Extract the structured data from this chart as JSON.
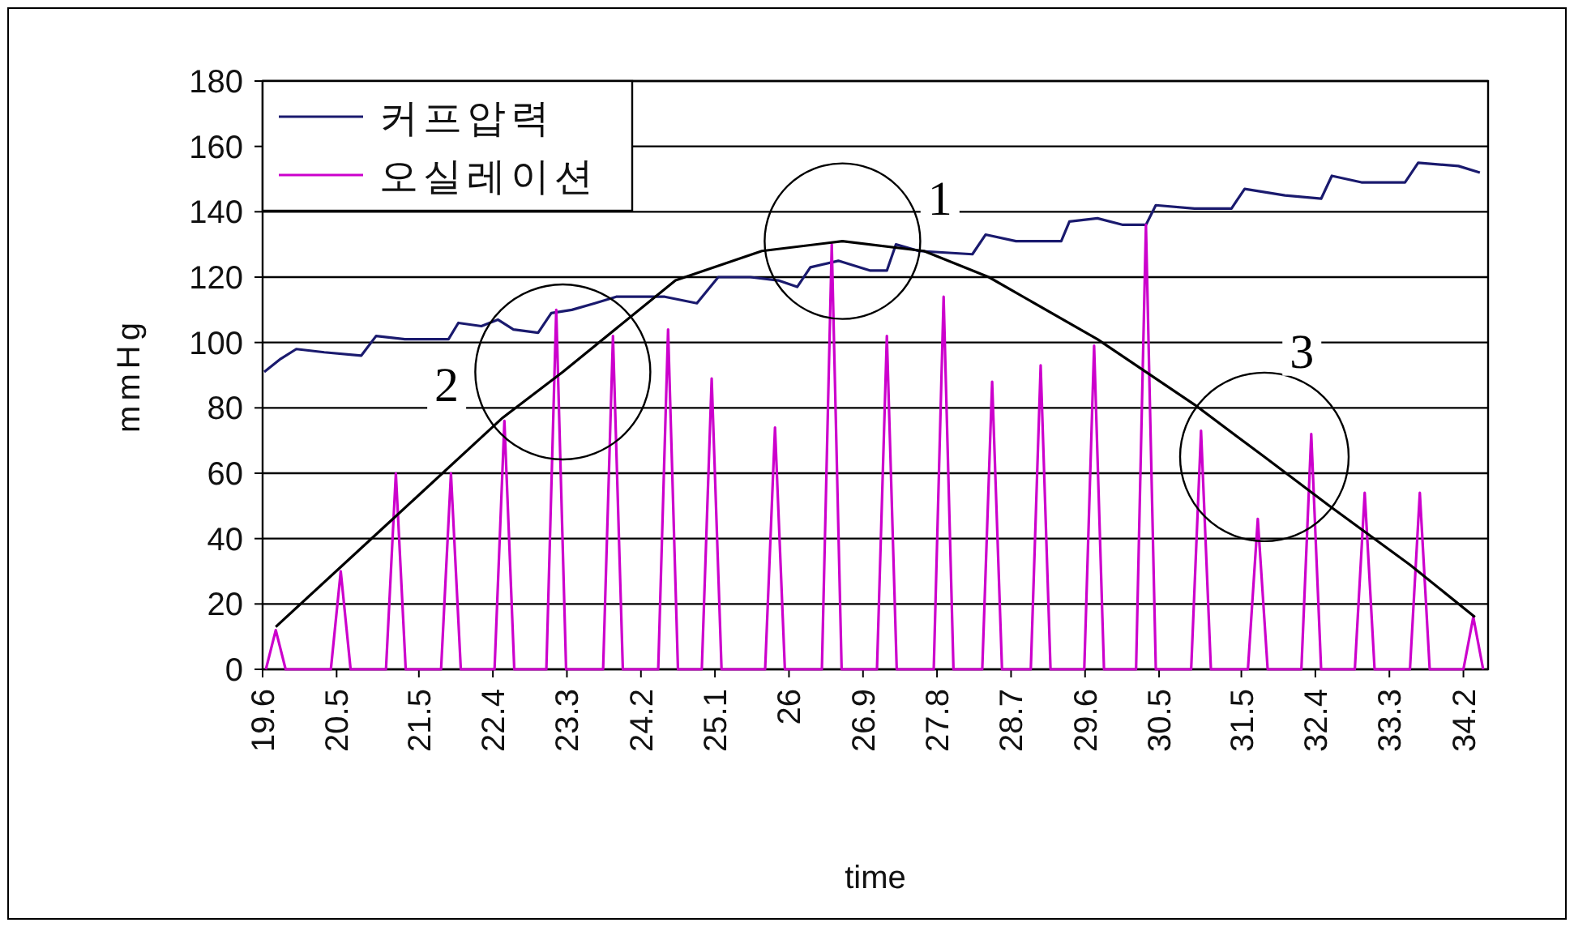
{
  "chart_data": {
    "type": "line",
    "xlabel": "time",
    "ylabel": "mmHg",
    "xlim": [
      19.6,
      34.5
    ],
    "ylim": [
      0,
      180
    ],
    "xticks": [
      19.6,
      20.5,
      21.5,
      22.4,
      23.3,
      24.2,
      25.1,
      26,
      26.9,
      27.8,
      28.7,
      29.6,
      30.5,
      31.5,
      32.4,
      33.3,
      34.2
    ],
    "yticks": [
      0,
      20,
      40,
      60,
      80,
      100,
      120,
      140,
      160,
      180
    ],
    "grid": "y",
    "legend": "top left",
    "series": [
      {
        "name": "커프압력",
        "color": "#1a1a6e",
        "x": [
          19.62,
          19.82,
          20.01,
          20.35,
          20.8,
          20.98,
          21.33,
          21.86,
          21.98,
          22.26,
          22.46,
          22.65,
          22.95,
          23.11,
          23.36,
          23.64,
          23.9,
          24.29,
          24.49,
          24.88,
          25.14,
          25.53,
          25.87,
          26.1,
          26.26,
          26.6,
          26.99,
          27.19,
          27.3,
          27.58,
          28.23,
          28.39,
          28.76,
          29.31,
          29.41,
          29.75,
          30.06,
          30.34,
          30.46,
          30.93,
          31.38,
          31.54,
          32.03,
          32.47,
          32.6,
          32.96,
          33.49,
          33.65,
          34.14,
          34.4
        ],
        "values": [
          91,
          95,
          98,
          97,
          96,
          102,
          101,
          101,
          106,
          105,
          107,
          104,
          103,
          109,
          110,
          112,
          114,
          114,
          114,
          112,
          120,
          120,
          119,
          117,
          123,
          125,
          122,
          122,
          130,
          128,
          127,
          133,
          131,
          131,
          137,
          138,
          136,
          136,
          142,
          141,
          141,
          147,
          145,
          144,
          151,
          149,
          149,
          155,
          154,
          152
        ]
      },
      {
        "name": "오실레이션",
        "color": "#cc00cc",
        "x": [
          19.64,
          19.76,
          19.88,
          20.43,
          20.55,
          20.67,
          21.1,
          21.22,
          21.34,
          21.77,
          21.89,
          22.01,
          22.42,
          22.54,
          22.66,
          23.05,
          23.17,
          23.29,
          23.74,
          23.86,
          23.98,
          24.41,
          24.53,
          24.65,
          24.94,
          25.06,
          25.18,
          25.71,
          25.83,
          25.95,
          26.4,
          26.52,
          26.64,
          27.07,
          27.19,
          27.31,
          27.76,
          27.88,
          28.0,
          28.35,
          28.47,
          28.59,
          28.94,
          29.06,
          29.18,
          29.59,
          29.71,
          29.83,
          30.22,
          30.34,
          30.46,
          30.89,
          31.01,
          31.13,
          31.58,
          31.7,
          31.82,
          32.23,
          32.35,
          32.47,
          32.88,
          33.0,
          33.12,
          33.55,
          33.67,
          33.79,
          34.2,
          34.32,
          34.44
        ],
        "values": [
          0,
          12,
          0,
          0,
          30,
          0,
          0,
          60,
          0,
          0,
          60,
          0,
          0,
          76,
          0,
          0,
          110,
          0,
          0,
          102,
          0,
          0,
          104,
          0,
          0,
          89,
          0,
          0,
          74,
          0,
          0,
          130,
          0,
          0,
          102,
          0,
          0,
          114,
          0,
          0,
          88,
          0,
          0,
          93,
          0,
          0,
          99,
          0,
          0,
          136,
          0,
          0,
          73,
          0,
          0,
          46,
          0,
          0,
          72,
          0,
          0,
          54,
          0,
          0,
          54,
          0,
          0,
          16,
          0
        ]
      },
      {
        "color": "#000000",
        "x": [
          19.76,
          21.14,
          22.52,
          23.25,
          24.62,
          25.67,
          26.65,
          27.64,
          28.43,
          29.75,
          30.93,
          31.78,
          32.57,
          33.55,
          34.34
        ],
        "values": [
          13,
          45,
          77,
          91,
          119,
          128,
          131,
          128,
          120,
          101,
          81,
          65,
          50,
          32,
          16
        ]
      }
    ],
    "annotations": [
      {
        "text": "1",
        "x": 26.65,
        "y": 131
      },
      {
        "text": "2",
        "x": 23.25,
        "y": 91
      },
      {
        "text": "3",
        "x": 31.78,
        "y": 65
      }
    ]
  }
}
